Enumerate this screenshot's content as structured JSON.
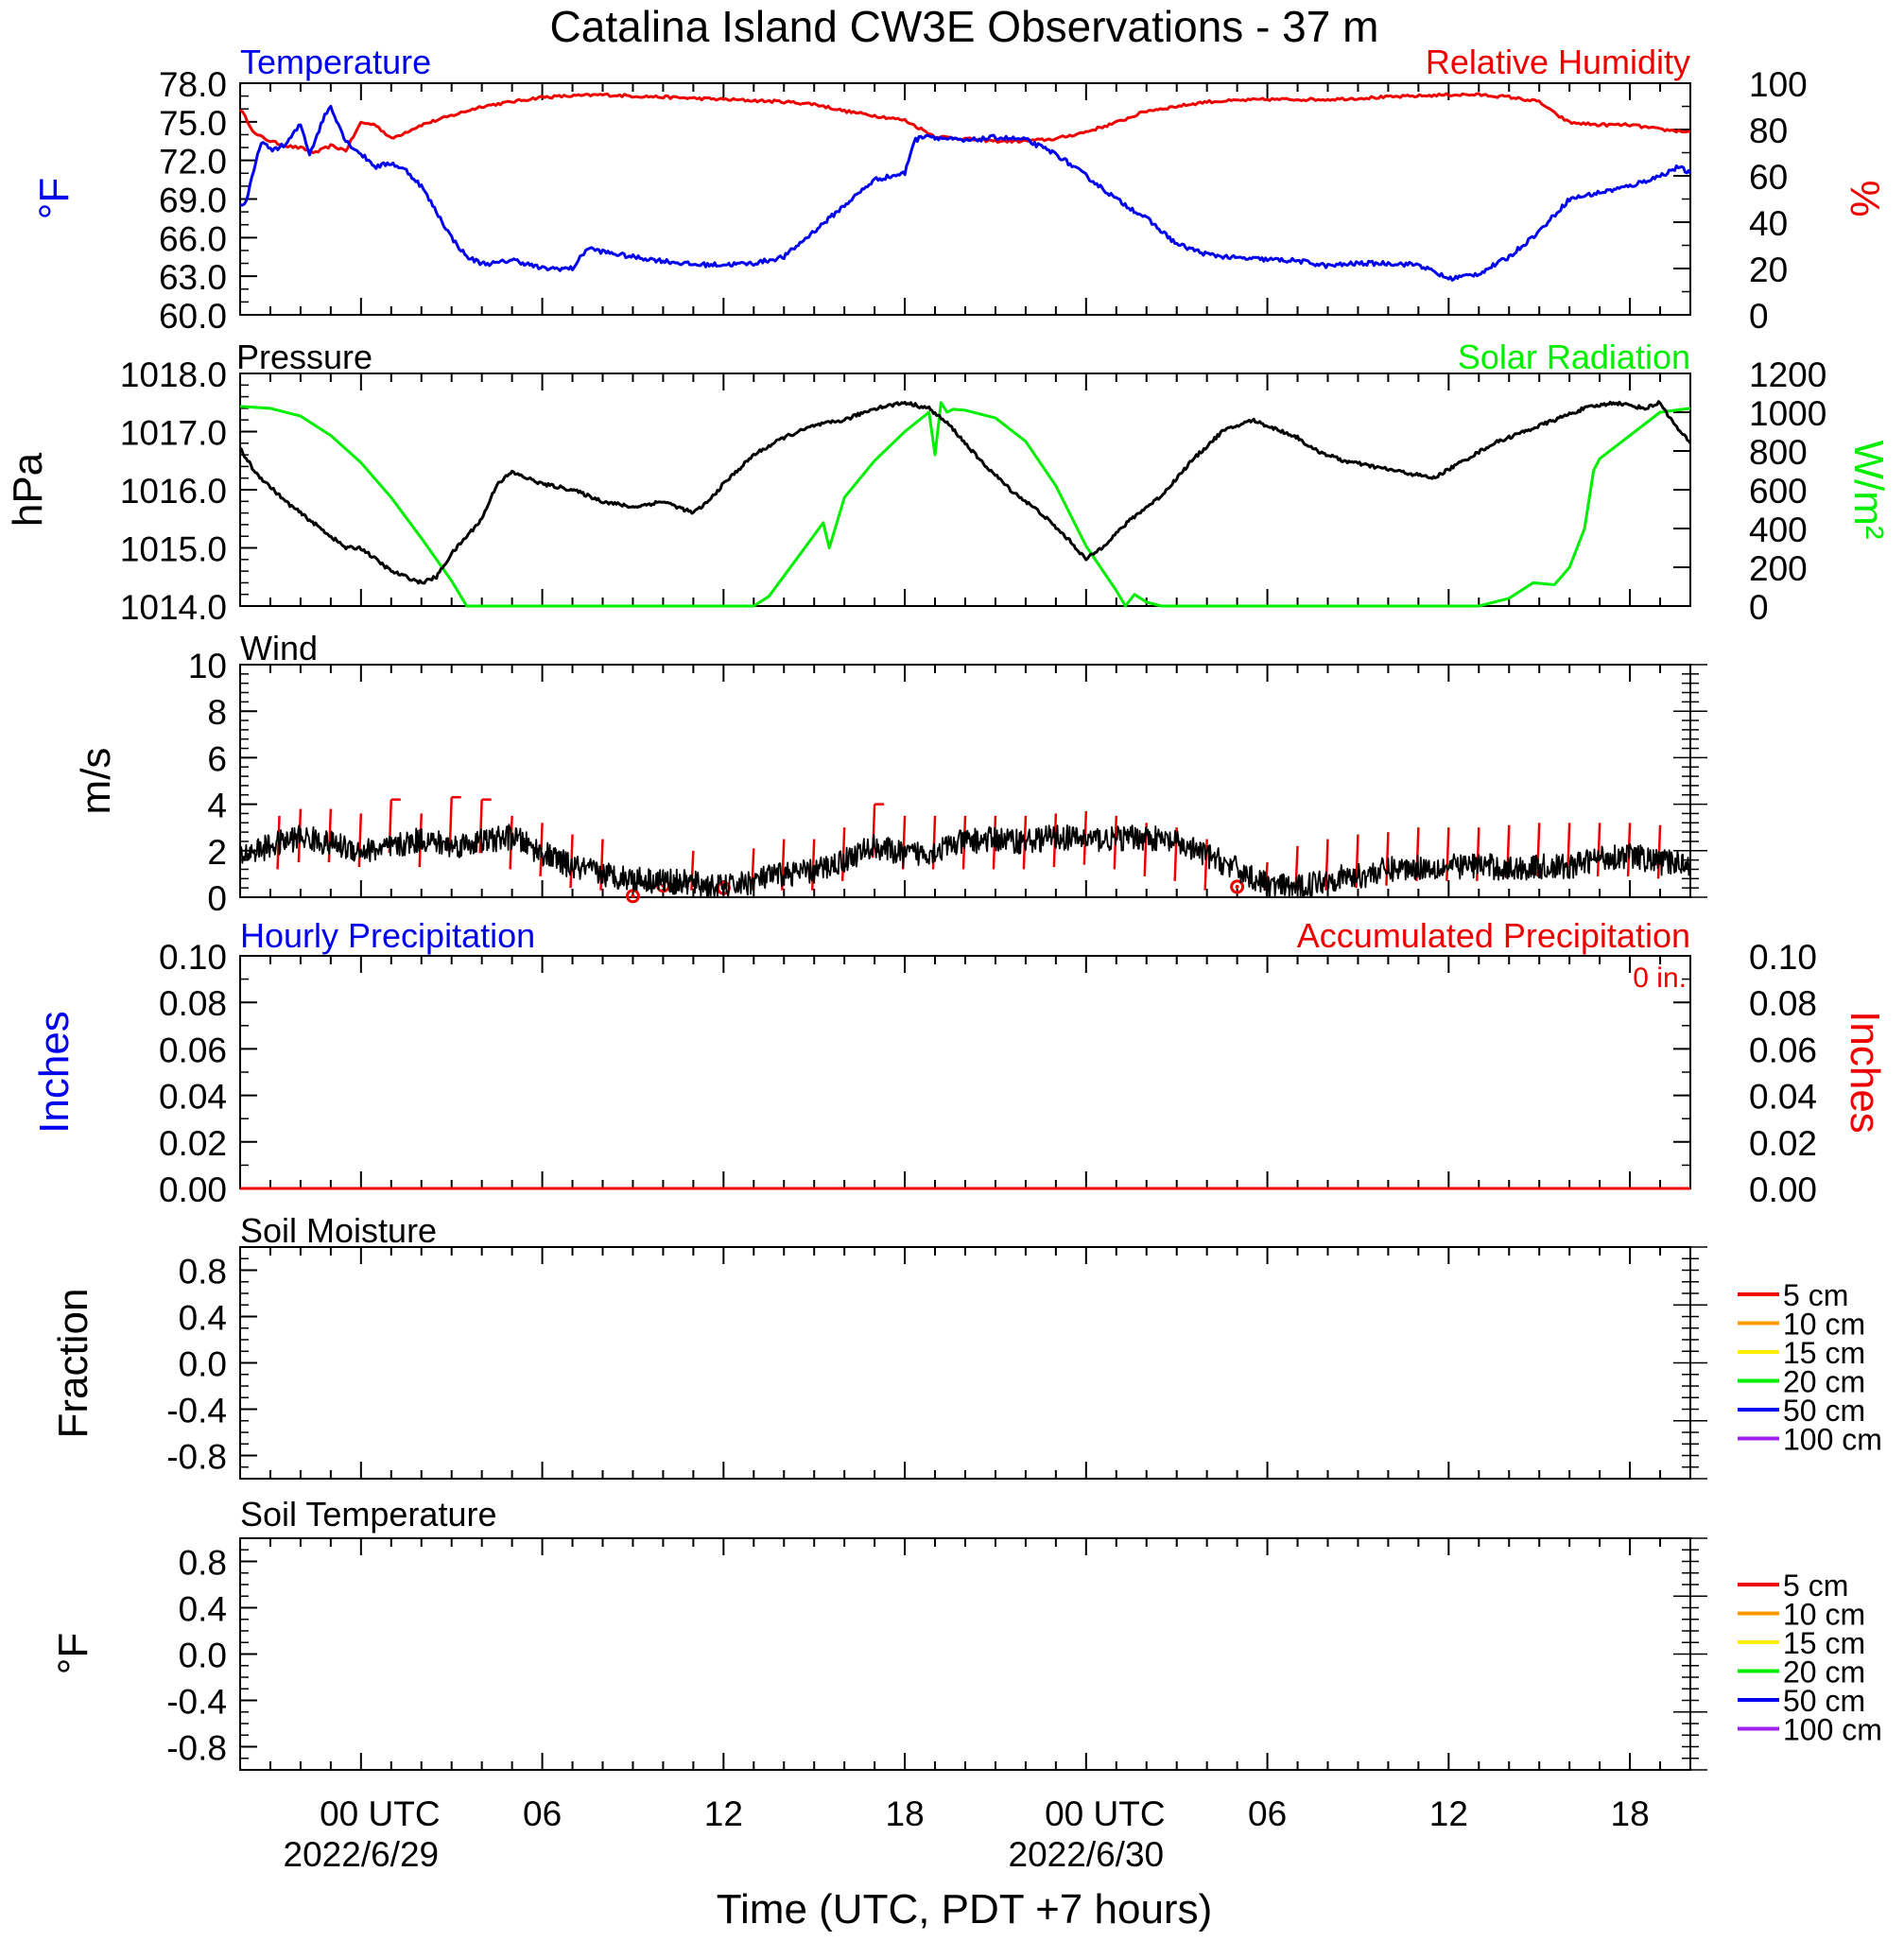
{
  "title": "Catalina Island CW3E Observations - 37 m",
  "xlabel": "Time (UTC, PDT +7 hours)",
  "x_ticks": [
    {
      "hour": 0,
      "label": "00 UTC",
      "date": "2022/6/29"
    },
    {
      "hour": 6,
      "label": "06",
      "date": ""
    },
    {
      "hour": 12,
      "label": "12",
      "date": ""
    },
    {
      "hour": 18,
      "label": "18",
      "date": ""
    },
    {
      "hour": 24,
      "label": "00 UTC",
      "date": "2022/6/30"
    },
    {
      "hour": 30,
      "label": "06",
      "date": ""
    },
    {
      "hour": 36,
      "label": "12",
      "date": ""
    },
    {
      "hour": 42,
      "label": "18",
      "date": ""
    }
  ],
  "x_range_hours": [
    -4,
    44
  ],
  "colors": {
    "temperature": "#0000ee",
    "humidity": "#ee0000",
    "pressure": "#000000",
    "solar": "#00ee00",
    "wind": "#000000",
    "wind_barb": "#ee0000",
    "hourly_precip": "#0000ee",
    "accum_precip": "#ee0000"
  },
  "panels": {
    "temp_rh": {
      "left_title": "Temperature",
      "right_title": "Relative Humidity",
      "left_unit": "°F",
      "right_unit": "%",
      "left_ticks": [
        "60.0",
        "63.0",
        "66.0",
        "69.0",
        "72.0",
        "75.0",
        "78.0"
      ],
      "right_ticks": [
        "0",
        "20",
        "40",
        "60",
        "80",
        "100"
      ]
    },
    "pressure_solar": {
      "left_title": "Pressure",
      "right_title": "Solar Radiation",
      "left_unit": "hPa",
      "right_unit": "W/m²",
      "left_ticks": [
        "1014.0",
        "1015.0",
        "1016.0",
        "1017.0",
        "1018.0"
      ],
      "right_ticks": [
        "0",
        "200",
        "400",
        "600",
        "800",
        "1000",
        "1200"
      ]
    },
    "wind": {
      "left_title": "Wind",
      "left_unit": "m/s",
      "left_ticks": [
        "0",
        "2",
        "4",
        "6",
        "8",
        "10"
      ]
    },
    "precip": {
      "left_title": "Hourly Precipitation",
      "right_title": "Accumulated Precipitation",
      "accum_label": "0 in.",
      "left_unit": "Inches",
      "right_unit": "Inches",
      "left_ticks": [
        "0.00",
        "0.02",
        "0.04",
        "0.06",
        "0.08",
        "0.10"
      ],
      "right_ticks": [
        "0.00",
        "0.02",
        "0.04",
        "0.06",
        "0.08",
        "0.10"
      ]
    },
    "soil_moisture": {
      "left_title": "Soil Moisture",
      "left_unit": "Fraction",
      "left_ticks": [
        "-0.8",
        "-0.4",
        "0.0",
        "0.4",
        "0.8"
      ],
      "legend": [
        {
          "label": "5 cm",
          "color": "#ee0000"
        },
        {
          "label": "10 cm",
          "color": "#ff9900"
        },
        {
          "label": "15 cm",
          "color": "#ffee00"
        },
        {
          "label": "20 cm",
          "color": "#00ee00"
        },
        {
          "label": "50 cm",
          "color": "#0000ee"
        },
        {
          "label": "100 cm",
          "color": "#a020f0"
        }
      ]
    },
    "soil_temp": {
      "left_title": "Soil Temperature",
      "left_unit": "°F",
      "left_ticks": [
        "-0.8",
        "-0.4",
        "0.0",
        "0.4",
        "0.8"
      ],
      "legend": [
        {
          "label": "5 cm",
          "color": "#ee0000"
        },
        {
          "label": "10 cm",
          "color": "#ff9900"
        },
        {
          "label": "15 cm",
          "color": "#ffee00"
        },
        {
          "label": "20 cm",
          "color": "#00ee00"
        },
        {
          "label": "50 cm",
          "color": "#0000ee"
        },
        {
          "label": "100 cm",
          "color": "#a020f0"
        }
      ]
    }
  },
  "chart_data": [
    {
      "type": "line",
      "panel": "temp_rh",
      "x_unit": "hours since 2022-06-29 00 UTC",
      "ylim": [
        60,
        78
      ],
      "y2lim": [
        0,
        100
      ],
      "series": [
        {
          "name": "Temperature",
          "axis": "left",
          "x": [
            -4.0,
            -3.8,
            -3.3,
            -3.0,
            -2.5,
            -2.0,
            -1.7,
            -1.2,
            -1.0,
            -0.5,
            0,
            0.5,
            1.0,
            1.5,
            2.0,
            2.5,
            3.0,
            3.5,
            4.0,
            4.5,
            5.0,
            6.0,
            7.0,
            7.5,
            8.0,
            9.0,
            10.0,
            11.0,
            12.0,
            13.0,
            14.0,
            15.0,
            16.0,
            17.0,
            18.0,
            18.3,
            18.7,
            19.0,
            20.0,
            21.0,
            22.0,
            23.0,
            24.0,
            25.0,
            26.0,
            27.0,
            28.0,
            29.0,
            30.0,
            31.0,
            32.0,
            33.0,
            34.0,
            35.0,
            36.0,
            37.0,
            38.0,
            39.0,
            40.0,
            41.0,
            42.0,
            43.0,
            43.6,
            44.0
          ],
          "y": [
            68.5,
            68.8,
            73.5,
            72.8,
            73.2,
            74.8,
            72.5,
            75.5,
            76.2,
            73.5,
            72.5,
            71.5,
            71.8,
            71.2,
            70.0,
            68.0,
            66.0,
            64.5,
            64.0,
            64.0,
            64.3,
            63.6,
            63.6,
            65.2,
            64.9,
            64.5,
            64.2,
            63.9,
            63.9,
            64.0,
            64.5,
            66.5,
            68.5,
            70.5,
            71.0,
            73.5,
            74.0,
            73.8,
            73.5,
            73.8,
            73.6,
            72.5,
            70.8,
            69.0,
            67.5,
            65.5,
            64.7,
            64.4,
            64.3,
            64.2,
            63.8,
            64.0,
            64.0,
            63.9,
            62.8,
            63.2,
            64.5,
            66.5,
            69.0,
            69.5,
            70.0,
            70.8,
            71.5,
            71.0
          ]
        },
        {
          "name": "Relative Humidity",
          "axis": "right",
          "x": [
            -4.0,
            -3.5,
            -3.0,
            -2.5,
            -2.0,
            -1.5,
            -1.0,
            -0.5,
            0,
            0.5,
            1.0,
            2.0,
            3.0,
            4.0,
            5.0,
            6.0,
            8.0,
            10.0,
            12.0,
            14.0,
            15.0,
            16.0,
            17.0,
            18.0,
            19.0,
            20.0,
            21.0,
            22.0,
            23.0,
            24.0,
            25.0,
            26.0,
            27.0,
            28.0,
            30.0,
            32.0,
            34.0,
            36.0,
            37.0,
            38.0,
            39.0,
            39.5,
            40.0,
            41.0,
            42.0,
            43.0,
            44.0
          ],
          "y": [
            89,
            78,
            75,
            73,
            72,
            70,
            73,
            71,
            83,
            82,
            76,
            82,
            86,
            90,
            92,
            94,
            95,
            94,
            93,
            92,
            91,
            88,
            86,
            84,
            77,
            76,
            75,
            75,
            76,
            79,
            83,
            88,
            90,
            92,
            93,
            93,
            94,
            95,
            95,
            94,
            92,
            87,
            83,
            82,
            82,
            80,
            79
          ]
        }
      ]
    },
    {
      "type": "line",
      "panel": "pressure_solar",
      "x_unit": "hours since 2022-06-29 00 UTC",
      "ylim": [
        1014,
        1018
      ],
      "y2lim": [
        0,
        1200
      ],
      "series": [
        {
          "name": "Pressure",
          "axis": "left",
          "x": [
            -4.0,
            -3.5,
            -2.5,
            -1.5,
            -0.5,
            0,
            1.0,
            2.0,
            2.5,
            3.0,
            3.5,
            4.0,
            4.5,
            5.0,
            5.5,
            6.0,
            7.0,
            8.0,
            9.0,
            10.0,
            11.0,
            11.5,
            12.0,
            13.0,
            14.0,
            15.0,
            16.0,
            17.0,
            18.0,
            18.8,
            19.5,
            20.5,
            21.5,
            22.5,
            23.5,
            24.0,
            24.5,
            25.5,
            26.5,
            27.5,
            28.5,
            29.5,
            30.5,
            31.0,
            31.5,
            32.5,
            33.5,
            34.5,
            35.5,
            36.5,
            37.5,
            38.5,
            39.5,
            40.5,
            41.5,
            42.5,
            43.0,
            43.5,
            44.0
          ],
          "y": [
            1016.7,
            1016.3,
            1015.8,
            1015.4,
            1015.0,
            1015.0,
            1014.6,
            1014.4,
            1014.5,
            1014.9,
            1015.2,
            1015.5,
            1016.1,
            1016.3,
            1016.2,
            1016.1,
            1016.0,
            1015.8,
            1015.7,
            1015.8,
            1015.6,
            1015.8,
            1016.1,
            1016.6,
            1016.9,
            1017.1,
            1017.2,
            1017.4,
            1017.5,
            1017.4,
            1017.1,
            1016.5,
            1016.0,
            1015.6,
            1015.1,
            1014.8,
            1015.0,
            1015.5,
            1015.9,
            1016.5,
            1017.0,
            1017.2,
            1017.0,
            1016.9,
            1016.7,
            1016.5,
            1016.4,
            1016.3,
            1016.2,
            1016.5,
            1016.8,
            1017.0,
            1017.2,
            1017.4,
            1017.5,
            1017.4,
            1017.5,
            1017.1,
            1016.8
          ]
        },
        {
          "name": "Solar Radiation",
          "axis": "right",
          "x": [
            -4.0,
            -3.0,
            -2.0,
            -1.0,
            0,
            1.0,
            2.0,
            3.0,
            3.5,
            13.0,
            13.5,
            14.5,
            15.3,
            15.5,
            16.0,
            17.0,
            18.0,
            18.8,
            19.0,
            19.2,
            19.4,
            19.6,
            20.0,
            21.0,
            22.0,
            23.0,
            24.0,
            25.0,
            25.3,
            25.6,
            26.0,
            26.5,
            27.0,
            37.0,
            38.0,
            38.8,
            39.5,
            40.0,
            40.5,
            40.8,
            41.0,
            42.0,
            43.0,
            44.0
          ],
          "y": [
            1030,
            1020,
            980,
            880,
            740,
            560,
            350,
            130,
            0,
            0,
            50,
            260,
            430,
            300,
            560,
            750,
            900,
            1000,
            780,
            1050,
            1000,
            1015,
            1010,
            970,
            850,
            620,
            310,
            80,
            0,
            60,
            20,
            0,
            0,
            0,
            40,
            120,
            110,
            200,
            400,
            700,
            760,
            880,
            1000,
            1020
          ]
        }
      ]
    },
    {
      "type": "line",
      "panel": "wind",
      "x_unit": "hours since 2022-06-29 00 UTC",
      "ylim": [
        0,
        10
      ],
      "series": [
        {
          "name": "Wind Speed",
          "x": [
            -4.0,
            -3.0,
            -2.0,
            -1.0,
            0,
            1.0,
            2.0,
            3.0,
            4.0,
            5.0,
            6.0,
            7.0,
            8.0,
            9.0,
            10.0,
            11.0,
            12.0,
            13.0,
            14.0,
            15.0,
            16.0,
            17.0,
            18.0,
            19.0,
            20.0,
            21.0,
            22.0,
            23.0,
            24.0,
            25.0,
            26.0,
            27.0,
            28.0,
            29.0,
            30.0,
            31.0,
            32.0,
            33.0,
            34.0,
            35.0,
            36.0,
            37.0,
            38.0,
            39.0,
            40.0,
            41.0,
            42.0,
            43.0,
            44.0
          ],
          "y": [
            1.8,
            2.2,
            2.6,
            2.3,
            2.0,
            2.1,
            2.5,
            2.2,
            2.4,
            2.6,
            1.9,
            1.3,
            1.0,
            0.8,
            0.7,
            0.6,
            0.4,
            0.7,
            1.0,
            1.1,
            1.6,
            2.2,
            1.8,
            2.0,
            2.4,
            2.5,
            2.4,
            2.6,
            2.5,
            2.5,
            2.6,
            2.3,
            1.8,
            1.2,
            0.5,
            0.4,
            0.8,
            0.9,
            1.2,
            1.3,
            1.3,
            1.4,
            1.2,
            1.3,
            1.3,
            1.7,
            1.8,
            1.5,
            1.5
          ]
        },
        {
          "name": "Wind Barbs",
          "x": [
            -2.7,
            -2.0,
            -1.0,
            0,
            1.0,
            2.0,
            3.0,
            4.0,
            5.0,
            6.0,
            7.0,
            8.0,
            9.0,
            10.0,
            11.0,
            12.0,
            13.0,
            14.0,
            15.0,
            16.0,
            17.0,
            18.0,
            19.0,
            20.0,
            21.0,
            22.0,
            23.0,
            24.0,
            25.0,
            26.0,
            27.0,
            28.0,
            29.0,
            30.0,
            31.0,
            32.0,
            33.0,
            34.0,
            35.0,
            36.0,
            37.0,
            38.0,
            39.0,
            40.0,
            41.0,
            42.0,
            43.0
          ],
          "y": [
            3.5,
            3.8,
            3.8,
            3.6,
            4.2,
            3.6,
            4.3,
            4.2,
            3.5,
            3.2,
            2.7,
            2.5,
            0,
            0.5,
            2.0,
            0.4,
            2.1,
            2.5,
            2.5,
            3.0,
            4.0,
            3.5,
            3.5,
            3.5,
            3.5,
            3.5,
            3.6,
            3.7,
            3.5,
            3.2,
            3.0,
            2.5,
            0.45,
            1.5,
            2.2,
            2.5,
            2.7,
            2.8,
            3.0,
            3.0,
            3.0,
            3.1,
            3.2,
            3.2,
            3.2,
            3.2,
            3.1
          ]
        }
      ]
    },
    {
      "type": "line",
      "panel": "precip",
      "ylim": [
        0,
        0.1
      ],
      "y2lim": [
        0,
        0.1
      ],
      "series": [
        {
          "name": "Hourly Precipitation",
          "axis": "left",
          "x": [
            -4,
            44
          ],
          "y": [
            0,
            0
          ]
        },
        {
          "name": "Accumulated Precipitation",
          "axis": "right",
          "x": [
            -4,
            44
          ],
          "y": [
            0,
            0
          ]
        }
      ]
    },
    {
      "type": "line",
      "panel": "soil_moisture",
      "ylim": [
        -1,
        1
      ],
      "series": []
    },
    {
      "type": "line",
      "panel": "soil_temp",
      "ylim": [
        -1,
        1
      ],
      "series": []
    }
  ]
}
